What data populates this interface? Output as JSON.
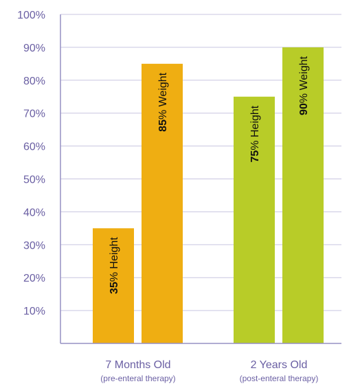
{
  "chart_data": {
    "type": "bar",
    "ylim": [
      0,
      100
    ],
    "yticks": [
      10,
      20,
      30,
      40,
      50,
      60,
      70,
      80,
      90,
      100
    ],
    "tick_suffix": "%",
    "grid": true,
    "groups": [
      {
        "label": "7 Months Old",
        "sublabel": "(pre-enteral therapy)",
        "bars": [
          {
            "value": 35,
            "num": "35",
            "text": "% Height",
            "color": "#efae12"
          },
          {
            "value": 85,
            "num": "85",
            "text": "% Weight",
            "color": "#efae12"
          }
        ]
      },
      {
        "label": "2 Years Old",
        "sublabel": "(post-enteral therapy)",
        "bars": [
          {
            "value": 75,
            "num": "75",
            "text": "% Height",
            "color": "#b8cc28"
          },
          {
            "value": 90,
            "num": "90",
            "text": "% Weight",
            "color": "#b8cc28"
          }
        ]
      }
    ],
    "colors": {
      "axis": "#9590c4",
      "grid": "#c8c5e0",
      "text": "#6a5fa3",
      "bar_label": "#111111"
    }
  }
}
